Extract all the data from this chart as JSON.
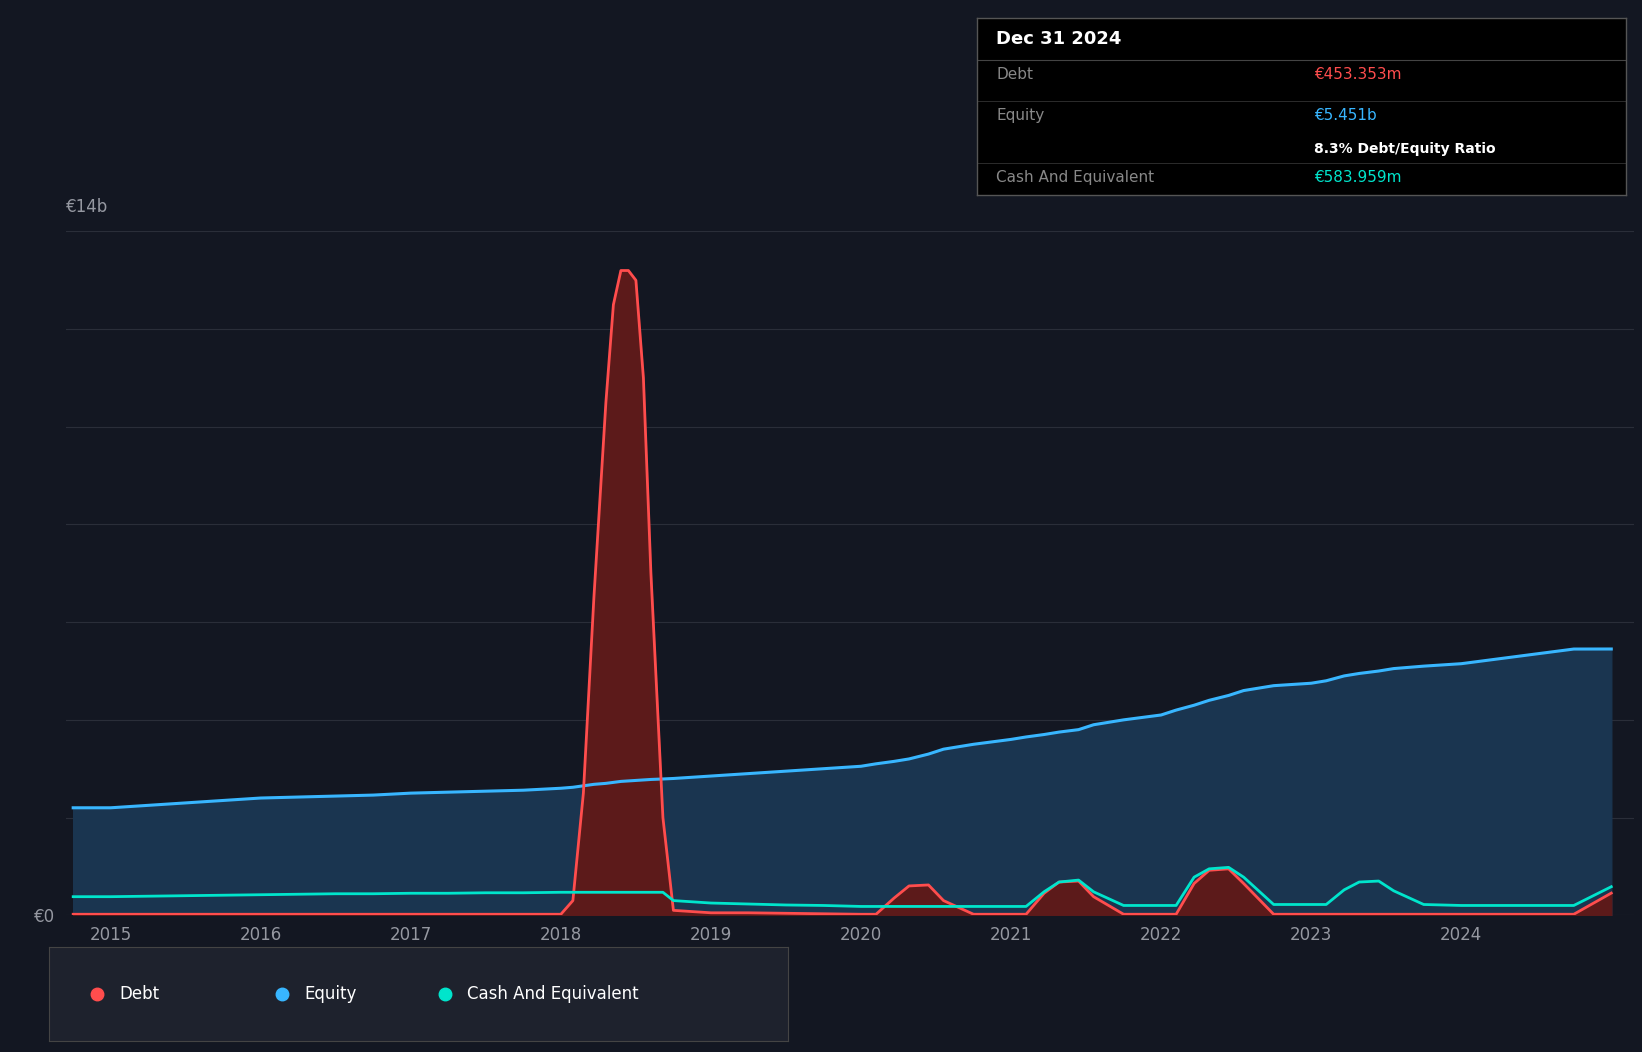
{
  "bg_color": "#131722",
  "plot_bg_color": "#131722",
  "grid_color": "#2a2e39",
  "title_box": {
    "date": "Dec 31 2024",
    "debt_label": "Debt",
    "debt_value": "€453.353m",
    "equity_label": "Equity",
    "equity_value": "€5.451b",
    "ratio_text": "8.3% Debt/Equity Ratio",
    "cash_label": "Cash And Equivalent",
    "cash_value": "€583.959m"
  },
  "ylabel_text": "€14b",
  "y0_text": "€0",
  "x_ticks": [
    "2015",
    "2016",
    "2017",
    "2018",
    "2019",
    "2020",
    "2021",
    "2022",
    "2023",
    "2024"
  ],
  "debt_color": "#ff4d4d",
  "equity_color": "#38b6ff",
  "cash_color": "#00e5cc",
  "equity_fill_color": "#1a3550",
  "debt_fill_color": "#5c1a1a",
  "legend_bg": "#1e222d",
  "years": [
    2014.75,
    2015.0,
    2015.25,
    2015.5,
    2015.75,
    2016.0,
    2016.25,
    2016.5,
    2016.75,
    2017.0,
    2017.25,
    2017.5,
    2017.75,
    2018.0,
    2018.08,
    2018.15,
    2018.22,
    2018.3,
    2018.35,
    2018.4,
    2018.45,
    2018.5,
    2018.55,
    2018.6,
    2018.68,
    2018.75,
    2019.0,
    2019.25,
    2019.5,
    2019.75,
    2020.0,
    2020.1,
    2020.22,
    2020.32,
    2020.45,
    2020.55,
    2020.75,
    2021.0,
    2021.1,
    2021.22,
    2021.32,
    2021.45,
    2021.55,
    2021.75,
    2022.0,
    2022.1,
    2022.22,
    2022.32,
    2022.45,
    2022.55,
    2022.75,
    2023.0,
    2023.1,
    2023.22,
    2023.32,
    2023.45,
    2023.55,
    2023.75,
    2024.0,
    2024.25,
    2024.5,
    2024.75,
    2025.0
  ],
  "equity": [
    2.2,
    2.2,
    2.25,
    2.3,
    2.35,
    2.4,
    2.42,
    2.44,
    2.46,
    2.5,
    2.52,
    2.54,
    2.56,
    2.6,
    2.62,
    2.65,
    2.68,
    2.7,
    2.72,
    2.74,
    2.75,
    2.76,
    2.77,
    2.78,
    2.79,
    2.8,
    2.85,
    2.9,
    2.95,
    3.0,
    3.05,
    3.1,
    3.15,
    3.2,
    3.3,
    3.4,
    3.5,
    3.6,
    3.65,
    3.7,
    3.75,
    3.8,
    3.9,
    4.0,
    4.1,
    4.2,
    4.3,
    4.4,
    4.5,
    4.6,
    4.7,
    4.75,
    4.8,
    4.9,
    4.95,
    5.0,
    5.05,
    5.1,
    5.15,
    5.25,
    5.35,
    5.45,
    5.451
  ],
  "debt": [
    0.02,
    0.02,
    0.02,
    0.02,
    0.02,
    0.02,
    0.02,
    0.02,
    0.02,
    0.02,
    0.02,
    0.02,
    0.02,
    0.02,
    0.3,
    2.5,
    6.5,
    10.5,
    12.5,
    13.2,
    13.2,
    13.0,
    11.0,
    7.0,
    2.0,
    0.1,
    0.05,
    0.05,
    0.04,
    0.03,
    0.02,
    0.02,
    0.35,
    0.6,
    0.62,
    0.3,
    0.02,
    0.02,
    0.02,
    0.45,
    0.68,
    0.7,
    0.38,
    0.02,
    0.02,
    0.02,
    0.65,
    0.92,
    0.95,
    0.65,
    0.02,
    0.02,
    0.02,
    0.02,
    0.02,
    0.02,
    0.02,
    0.02,
    0.02,
    0.02,
    0.02,
    0.02,
    0.4534
  ],
  "cash": [
    0.38,
    0.38,
    0.39,
    0.4,
    0.41,
    0.42,
    0.43,
    0.44,
    0.44,
    0.45,
    0.45,
    0.46,
    0.46,
    0.47,
    0.47,
    0.47,
    0.47,
    0.47,
    0.47,
    0.47,
    0.47,
    0.47,
    0.47,
    0.47,
    0.47,
    0.3,
    0.25,
    0.23,
    0.21,
    0.2,
    0.18,
    0.18,
    0.18,
    0.18,
    0.18,
    0.18,
    0.18,
    0.18,
    0.18,
    0.48,
    0.68,
    0.72,
    0.48,
    0.2,
    0.2,
    0.2,
    0.78,
    0.95,
    0.98,
    0.78,
    0.22,
    0.22,
    0.22,
    0.52,
    0.68,
    0.7,
    0.5,
    0.22,
    0.2,
    0.2,
    0.2,
    0.2,
    0.584
  ],
  "ylim": [
    0,
    14.0
  ],
  "xlim": [
    2014.7,
    2025.15
  ],
  "ytick_vals": [
    0,
    14.0
  ],
  "grid_lines": [
    0,
    2,
    4,
    6,
    8,
    10,
    12,
    14
  ]
}
